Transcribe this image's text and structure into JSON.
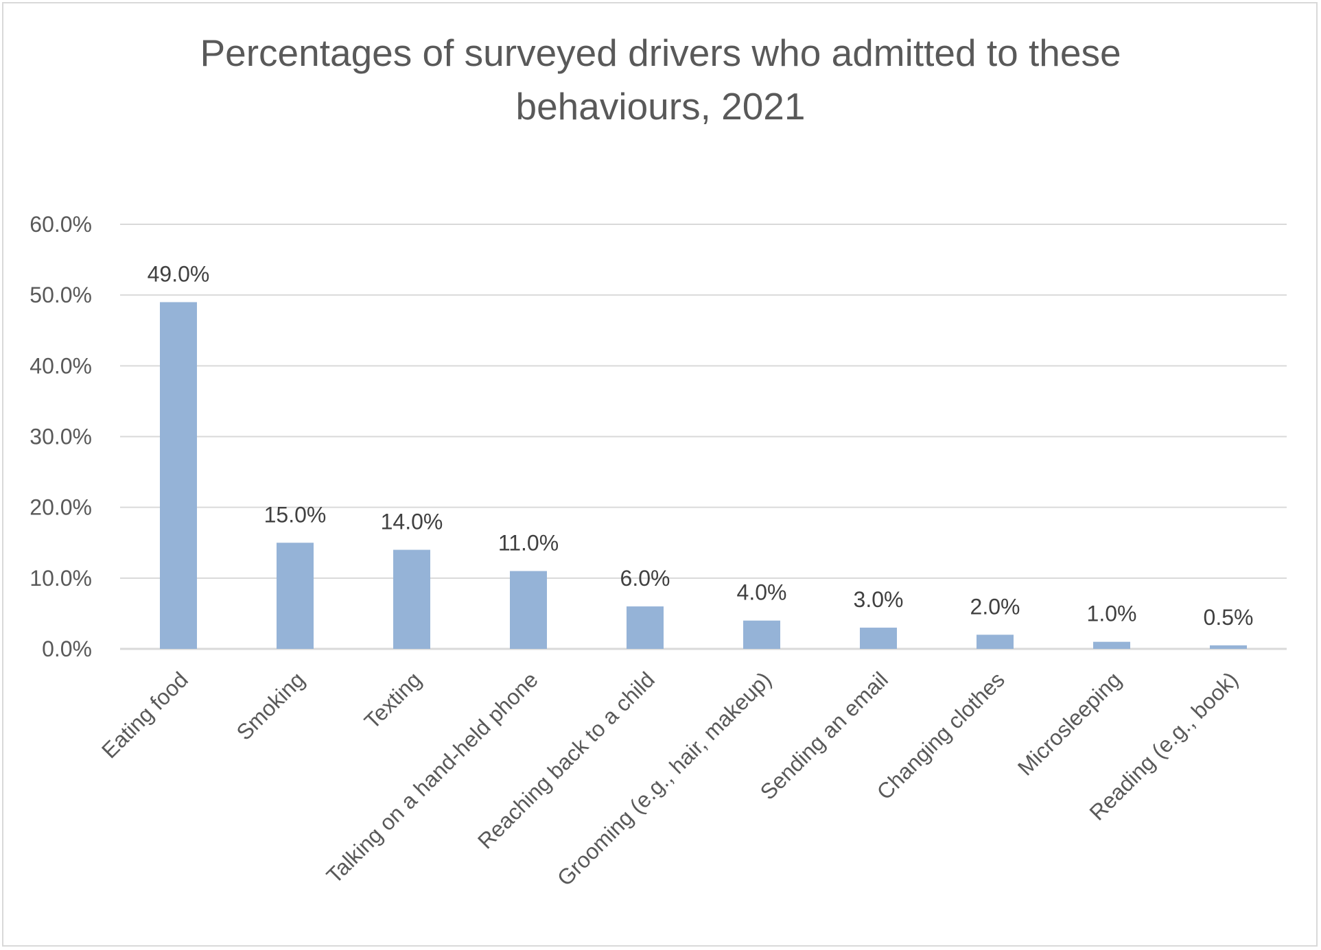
{
  "chart_data": {
    "type": "bar",
    "title_lines": [
      "Percentages of surveyed drivers who admitted to these",
      "behaviours, 2021"
    ],
    "categories": [
      "Eating food",
      "Smoking",
      "Texting",
      "Talking on a hand-held phone",
      "Reaching back to a child",
      "Grooming (e.g., hair, makeup)",
      "Sending an email",
      "Changing clothes",
      "Microsleeping",
      "Reading (e.g., book)"
    ],
    "values": [
      49.0,
      15.0,
      14.0,
      11.0,
      6.0,
      4.0,
      3.0,
      2.0,
      1.0,
      0.5
    ],
    "data_labels": [
      "49.0%",
      "15.0%",
      "14.0%",
      "11.0%",
      "6.0%",
      "4.0%",
      "3.0%",
      "2.0%",
      "1.0%",
      "0.5%"
    ],
    "yticks": [
      0,
      10,
      20,
      30,
      40,
      50,
      60
    ],
    "ytick_labels": [
      "0.0%",
      "10.0%",
      "20.0%",
      "30.0%",
      "40.0%",
      "50.0%",
      "60.0%"
    ],
    "ylim": [
      0,
      60
    ],
    "xlabel": "",
    "ylabel": "",
    "grid": true,
    "legend": "none",
    "colors": {
      "bar": "#95b3d7",
      "grid": "#d9d9d9",
      "axis": "#d9d9d9",
      "text": "#595959",
      "data_label": "#404040"
    }
  }
}
